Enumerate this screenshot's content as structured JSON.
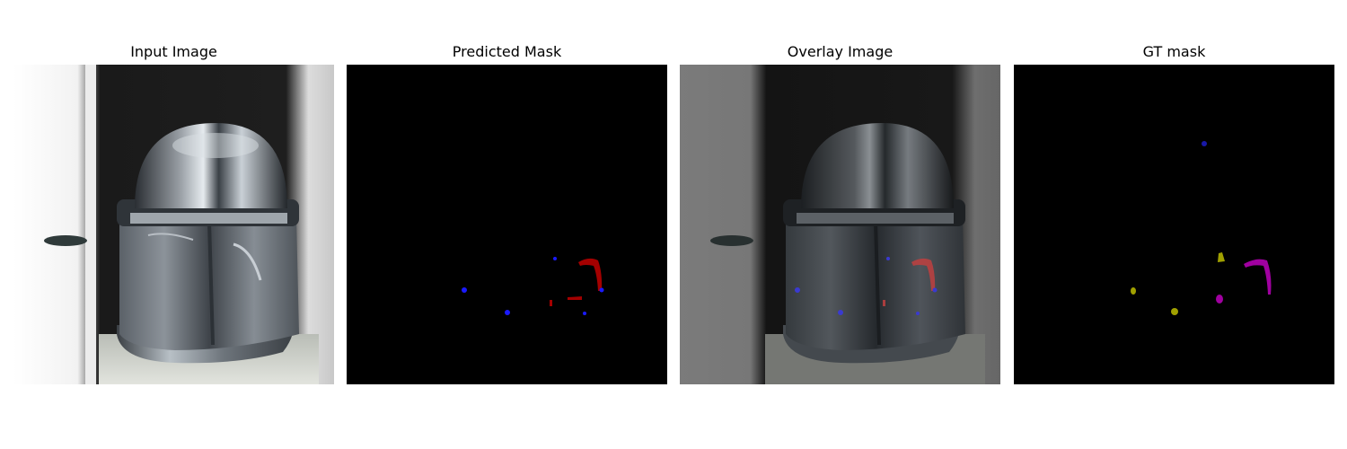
{
  "figure": {
    "panels": [
      {
        "id": "input",
        "title": "Input Image"
      },
      {
        "id": "pred",
        "title": "Predicted Mask"
      },
      {
        "id": "overlay",
        "title": "Overlay Image"
      },
      {
        "id": "gt",
        "title": "GT mask"
      }
    ]
  },
  "colors": {
    "mask_background": "#000000",
    "pred_red": "#a40000",
    "pred_blue": "#1a1aff",
    "gt_magenta": "#a000a0",
    "gt_olive": "#a0a000",
    "gt_blue": "#1818a8"
  }
}
